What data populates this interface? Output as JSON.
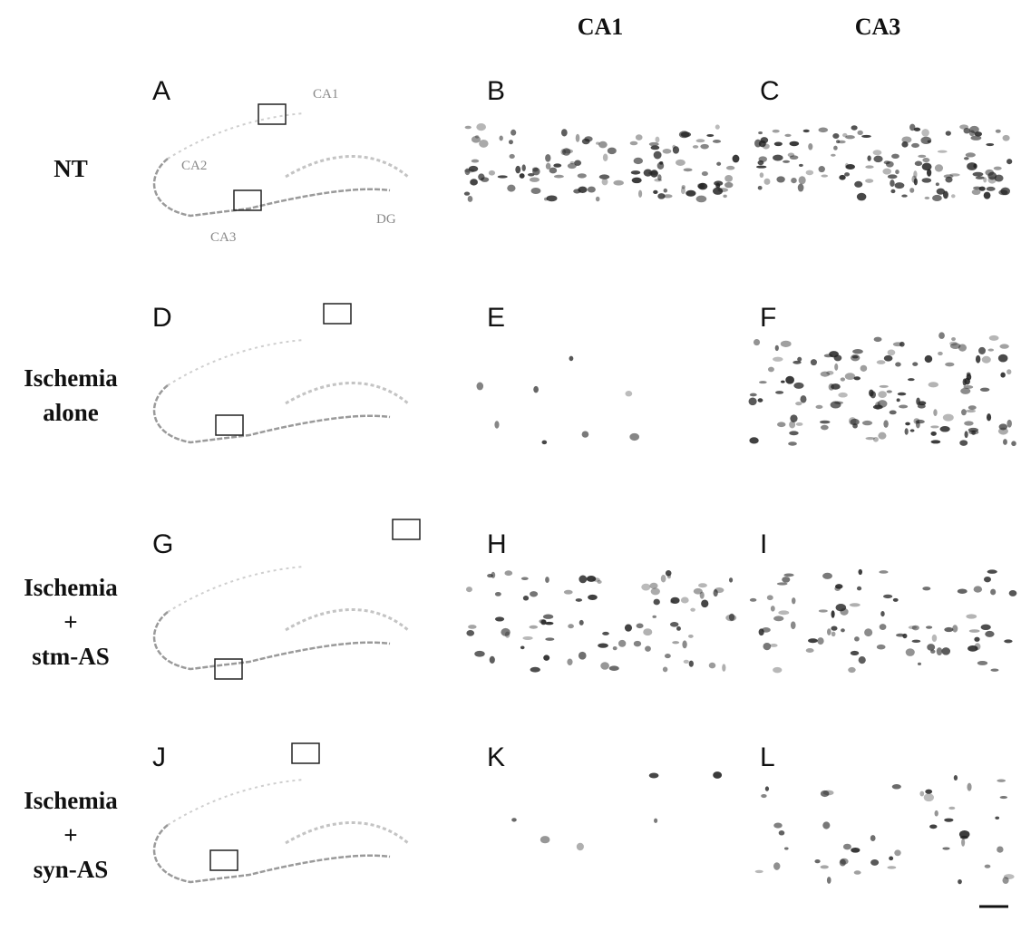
{
  "column_headers": [
    "CA1",
    "CA3"
  ],
  "rows": [
    {
      "label_lines": [
        "NT"
      ],
      "panels": [
        "A",
        "B",
        "C"
      ]
    },
    {
      "label_lines": [
        "Ischemia",
        "alone"
      ],
      "panels": [
        "D",
        "E",
        "F"
      ]
    },
    {
      "label_lines": [
        "Ischemia",
        "+",
        "stm-AS"
      ],
      "panels": [
        "G",
        "H",
        "I"
      ]
    },
    {
      "label_lines": [
        "Ischemia",
        "+",
        "syn-AS"
      ],
      "panels": [
        "J",
        "K",
        "L"
      ]
    }
  ],
  "region_labels": [
    "CA1",
    "CA2",
    "CA3",
    "DG"
  ]
}
